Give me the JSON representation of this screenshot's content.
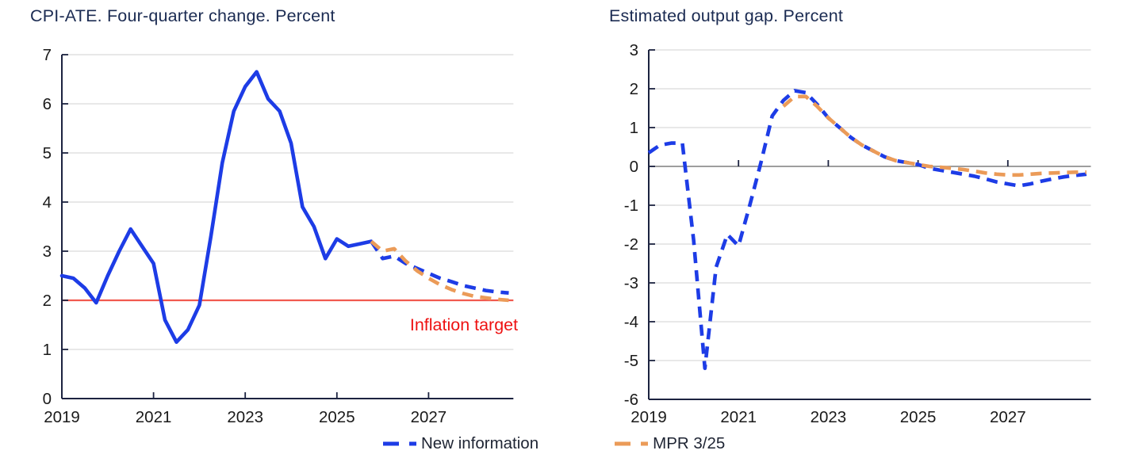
{
  "colors": {
    "new_information": "#1d3ce6",
    "mpr": "#eb9b58",
    "target_line": "#f15a4f",
    "target_label": "#ee1111",
    "title_text": "#1b2b52",
    "axis_line": "#1c2340",
    "tick_label": "#1a1a1a",
    "gridline": "#d9d9d9",
    "zero_line": "#7e7e7e",
    "background": "#ffffff"
  },
  "legend": {
    "items": [
      {
        "label": "New information",
        "color_key": "new_information"
      },
      {
        "label": "MPR 3/25",
        "color_key": "mpr"
      }
    ]
  },
  "chart_data": [
    {
      "type": "line",
      "title": "CPI-ATE. Four-quarter change. Percent",
      "xlabel": "",
      "ylabel": "",
      "xlim": [
        2019,
        2028.85
      ],
      "ylim": [
        0,
        7
      ],
      "xticks": [
        2019,
        2021,
        2023,
        2025,
        2027
      ],
      "yticks": [
        0,
        1,
        2,
        3,
        4,
        5,
        6,
        7
      ],
      "grid": "horizontal",
      "zero_line_dark": false,
      "target_line": {
        "value": 2,
        "color_key": "target_line"
      },
      "annotation": {
        "text": "Inflation target",
        "x": 2028.95,
        "y": 1.5,
        "anchor": "end",
        "color_key": "target_label"
      },
      "series": [
        {
          "name": "New information",
          "style": "solid",
          "color_key": "new_information",
          "x": [
            2019,
            2019.25,
            2019.5,
            2019.75,
            2020,
            2020.25,
            2020.5,
            2020.75,
            2021,
            2021.25,
            2021.5,
            2021.75,
            2022,
            2022.25,
            2022.5,
            2022.75,
            2023,
            2023.25,
            2023.5,
            2023.75,
            2024,
            2024.25,
            2024.5,
            2024.75,
            2025,
            2025.25,
            2025.5,
            2025.75
          ],
          "y": [
            2.5,
            2.45,
            2.25,
            1.95,
            2.5,
            3.0,
            3.45,
            3.1,
            2.75,
            1.6,
            1.15,
            1.4,
            1.9,
            3.3,
            4.8,
            5.85,
            6.35,
            6.65,
            6.1,
            5.85,
            5.2,
            3.9,
            3.5,
            2.85,
            3.25,
            3.1,
            3.15,
            3.2
          ]
        },
        {
          "name": "New information forecast",
          "style": "dashed",
          "color_key": "new_information",
          "x": [
            2025.75,
            2026,
            2026.25,
            2026.5,
            2026.75,
            2027,
            2027.25,
            2027.5,
            2027.75,
            2028,
            2028.25,
            2028.5,
            2028.75
          ],
          "y": [
            3.2,
            2.85,
            2.9,
            2.75,
            2.65,
            2.55,
            2.45,
            2.38,
            2.3,
            2.25,
            2.2,
            2.17,
            2.15
          ]
        },
        {
          "name": "MPR 3/25",
          "style": "dashed",
          "color_key": "mpr",
          "x": [
            2025.75,
            2026,
            2026.25,
            2026.5,
            2026.75,
            2027,
            2027.25,
            2027.5,
            2027.75,
            2028,
            2028.25,
            2028.5,
            2028.75
          ],
          "y": [
            3.2,
            3.0,
            3.05,
            2.8,
            2.6,
            2.45,
            2.32,
            2.22,
            2.14,
            2.08,
            2.05,
            2.02,
            2.0
          ]
        }
      ]
    },
    {
      "type": "line",
      "title": "Estimated output gap. Percent",
      "xlabel": "",
      "ylabel": "",
      "xlim": [
        2019,
        2028.85
      ],
      "ylim": [
        -6,
        3
      ],
      "xticks": [
        2019,
        2021,
        2023,
        2025,
        2027
      ],
      "yticks": [
        -6,
        -5,
        -4,
        -3,
        -2,
        -1,
        0,
        1,
        2,
        3
      ],
      "grid": "horizontal",
      "zero_line_dark": true,
      "series": [
        {
          "name": "New information",
          "style": "dashed",
          "color_key": "new_information",
          "x": [
            2019,
            2019.25,
            2019.5,
            2019.75,
            2020,
            2020.25,
            2020.5,
            2020.75,
            2021,
            2021.25,
            2021.5,
            2021.75,
            2022,
            2022.25,
            2022.5,
            2022.75,
            2023,
            2023.25,
            2023.5,
            2023.75,
            2024,
            2024.25,
            2024.5,
            2024.75,
            2025,
            2025.25,
            2025.5,
            2025.75,
            2026,
            2026.25,
            2026.5,
            2026.75,
            2027,
            2027.25,
            2027.5,
            2027.75,
            2028,
            2028.25,
            2028.5,
            2028.75
          ],
          "y": [
            0.35,
            0.55,
            0.6,
            0.6,
            -1.9,
            -5.2,
            -2.6,
            -1.75,
            -2.05,
            -1.0,
            0.1,
            1.3,
            1.7,
            1.95,
            1.9,
            1.6,
            1.25,
            1.0,
            0.75,
            0.55,
            0.4,
            0.25,
            0.15,
            0.1,
            0.05,
            -0.05,
            -0.1,
            -0.15,
            -0.2,
            -0.25,
            -0.32,
            -0.4,
            -0.45,
            -0.5,
            -0.45,
            -0.38,
            -0.32,
            -0.27,
            -0.23,
            -0.2
          ]
        },
        {
          "name": "MPR 3/25",
          "style": "dashed",
          "color_key": "mpr",
          "x": [
            2022,
            2022.25,
            2022.5,
            2022.75,
            2023,
            2023.25,
            2023.5,
            2023.75,
            2024,
            2024.25,
            2024.5,
            2024.75,
            2025,
            2025.25,
            2025.5,
            2025.75,
            2026,
            2026.25,
            2026.5,
            2026.75,
            2027,
            2027.25,
            2027.5,
            2027.75,
            2028,
            2028.25,
            2028.5,
            2028.75
          ],
          "y": [
            1.55,
            1.8,
            1.8,
            1.55,
            1.25,
            1.0,
            0.75,
            0.55,
            0.4,
            0.25,
            0.15,
            0.1,
            0.05,
            0.0,
            -0.02,
            -0.05,
            -0.08,
            -0.12,
            -0.17,
            -0.2,
            -0.22,
            -0.22,
            -0.2,
            -0.18,
            -0.17,
            -0.16,
            -0.15,
            -0.15
          ]
        }
      ]
    }
  ]
}
